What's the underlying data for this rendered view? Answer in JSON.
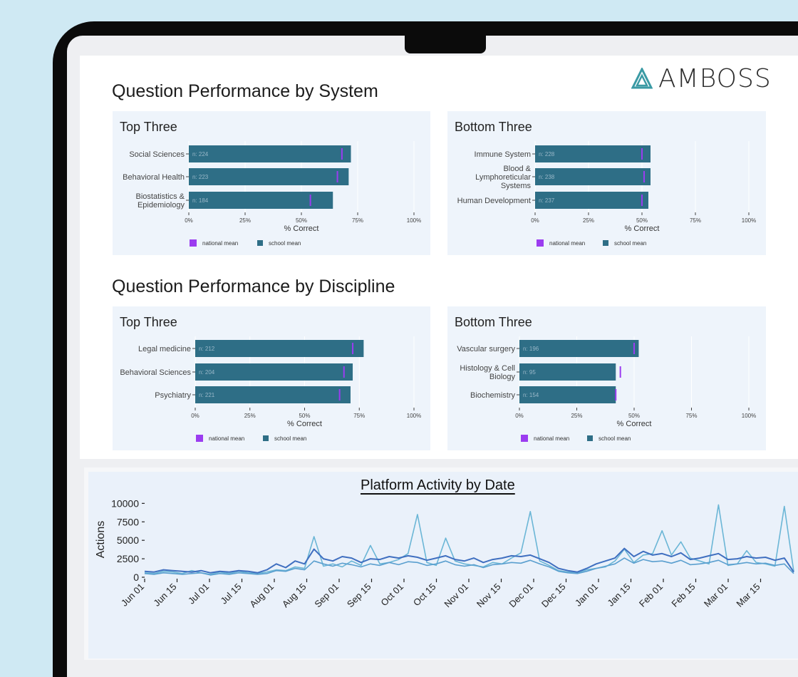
{
  "brand": {
    "name": "AMBOSS",
    "logo_icon": "triangle-logo",
    "accent": "#3a9aa4"
  },
  "sections": {
    "system_title": "Question Performance by System",
    "discipline_title": "Question Performance by Discipline"
  },
  "colors": {
    "school_mean": "#2e6e86",
    "national_mean": "#9b3cf0",
    "line_series": [
      "#6bb6d6",
      "#3f6fc0",
      "#5a9fcf"
    ]
  },
  "chart_data": [
    {
      "id": "system_top",
      "type": "bar",
      "orientation": "horizontal",
      "title": "Top Three",
      "xlabel": "% Correct",
      "xlim": [
        0,
        100
      ],
      "ticks": [
        "0%",
        "25%",
        "50%",
        "75%",
        "100%"
      ],
      "categories": [
        "Social Sciences",
        "Behavioral Health",
        "Biostatistics & Epidemiology"
      ],
      "series": [
        {
          "name": "school mean",
          "values": [
            72,
            71,
            64
          ],
          "n_labels": [
            "n: 224",
            "n: 223",
            "n: 184"
          ]
        },
        {
          "name": "national mean",
          "values": [
            68,
            66,
            54
          ]
        }
      ],
      "legend": [
        "national mean",
        "school mean"
      ]
    },
    {
      "id": "system_bottom",
      "type": "bar",
      "orientation": "horizontal",
      "title": "Bottom Three",
      "xlabel": "% Correct",
      "xlim": [
        0,
        100
      ],
      "ticks": [
        "0%",
        "25%",
        "50%",
        "75%",
        "100%"
      ],
      "categories": [
        "Immune System",
        "Blood & Lymphoreticular Systems",
        "Human Development"
      ],
      "series": [
        {
          "name": "school mean",
          "values": [
            54,
            54,
            53
          ],
          "n_labels": [
            "n: 228",
            "n: 238",
            "n: 237"
          ]
        },
        {
          "name": "national mean",
          "values": [
            50,
            51,
            50
          ]
        }
      ],
      "legend": [
        "national mean",
        "school mean"
      ]
    },
    {
      "id": "discipline_top",
      "type": "bar",
      "orientation": "horizontal",
      "title": "Top Three",
      "xlabel": "% Correct",
      "xlim": [
        0,
        100
      ],
      "ticks": [
        "0%",
        "25%",
        "50%",
        "75%",
        "100%"
      ],
      "categories": [
        "Legal medicine",
        "Behavioral Sciences",
        "Psychiatry"
      ],
      "series": [
        {
          "name": "school mean",
          "values": [
            77,
            72,
            71
          ],
          "n_labels": [
            "n: 212",
            "n: 204",
            "n: 221"
          ]
        },
        {
          "name": "national mean",
          "values": [
            72,
            68,
            66
          ]
        }
      ],
      "legend": [
        "national mean",
        "school mean"
      ]
    },
    {
      "id": "discipline_bottom",
      "type": "bar",
      "orientation": "horizontal",
      "title": "Bottom Three",
      "xlabel": "% Correct",
      "xlim": [
        0,
        100
      ],
      "ticks": [
        "0%",
        "25%",
        "50%",
        "75%",
        "100%"
      ],
      "categories": [
        "Vascular surgery",
        "Histology & Cell Biology",
        "Biochemistry"
      ],
      "series": [
        {
          "name": "school mean",
          "values": [
            52,
            42,
            42
          ],
          "n_labels": [
            "n: 196",
            "n: 95",
            "n: 154"
          ]
        },
        {
          "name": "national mean",
          "values": [
            50,
            44,
            42
          ]
        }
      ],
      "legend": [
        "national mean",
        "school mean"
      ]
    },
    {
      "id": "platform_activity",
      "type": "line",
      "title": "Platform Activity by Date",
      "ylabel": "Actions",
      "ylim": [
        0,
        11000
      ],
      "yticks": [
        "10000",
        "7500",
        "5000",
        "2500",
        "0"
      ],
      "xticks": [
        "Jun 01",
        "Jun 15",
        "Jul 01",
        "Jul 15",
        "Aug 01",
        "Aug 15",
        "Sep 01",
        "Sep 15",
        "Oct 01",
        "Oct 15",
        "Nov 01",
        "Nov 15",
        "Dec 01",
        "Dec 15",
        "Jan 01",
        "Jan 15",
        "Feb 01",
        "Feb 15",
        "Mar 01",
        "Mar 15"
      ],
      "series": [
        {
          "values": [
            600,
            500,
            800,
            700,
            500,
            900,
            600,
            400,
            700,
            500,
            800,
            600,
            500,
            700,
            1000,
            900,
            1400,
            1200,
            5500,
            1500,
            1800,
            1400,
            2200,
            1600,
            4300,
            1800,
            2000,
            2400,
            3200,
            8500,
            2000,
            1600,
            5300,
            2200,
            1800,
            1600,
            1400,
            2000,
            1800,
            2600,
            3300,
            8900,
            2200,
            1600,
            900,
            700,
            600,
            1000,
            1200,
            1400,
            2200,
            3800,
            2000,
            3000,
            3200,
            6300,
            3000,
            4800,
            2600,
            2200,
            1800,
            9800,
            1600,
            1800,
            3600,
            2000,
            1800,
            1500,
            9600,
            800
          ]
        },
        {
          "values": [
            800,
            700,
            1000,
            900,
            800,
            700,
            900,
            600,
            800,
            700,
            900,
            800,
            600,
            1000,
            1800,
            1300,
            2200,
            1800,
            3800,
            2500,
            2200,
            2800,
            2600,
            2000,
            2500,
            2400,
            2800,
            2600,
            2900,
            2700,
            2300,
            2600,
            2900,
            2400,
            2200,
            2600,
            2000,
            2400,
            2600,
            2900,
            2800,
            3000,
            2500,
            2000,
            1200,
            900,
            700,
            1200,
            1800,
            2200,
            2600,
            3900,
            2800,
            3500,
            3000,
            3200,
            2800,
            3300,
            2400,
            2600,
            2900,
            3200,
            2400,
            2500,
            2800,
            2600,
            2700,
            2300,
            2600,
            700
          ]
        },
        {
          "values": [
            500,
            400,
            600,
            500,
            400,
            500,
            600,
            300,
            500,
            400,
            600,
            500,
            400,
            500,
            900,
            800,
            1200,
            1000,
            2200,
            1800,
            1500,
            1900,
            1700,
            1400,
            1800,
            1600,
            2000,
            1700,
            2100,
            2000,
            1600,
            1800,
            2200,
            1700,
            1500,
            1700,
            1300,
            1700,
            1800,
            2000,
            1900,
            2300,
            1800,
            1400,
            800,
            600,
            500,
            800,
            1200,
            1500,
            1800,
            2600,
            1900,
            2400,
            2100,
            2200,
            1900,
            2300,
            1700,
            1800,
            2000,
            2300,
            1700,
            1800,
            2000,
            1800,
            1900,
            1600,
            1800,
            500
          ]
        }
      ]
    }
  ]
}
